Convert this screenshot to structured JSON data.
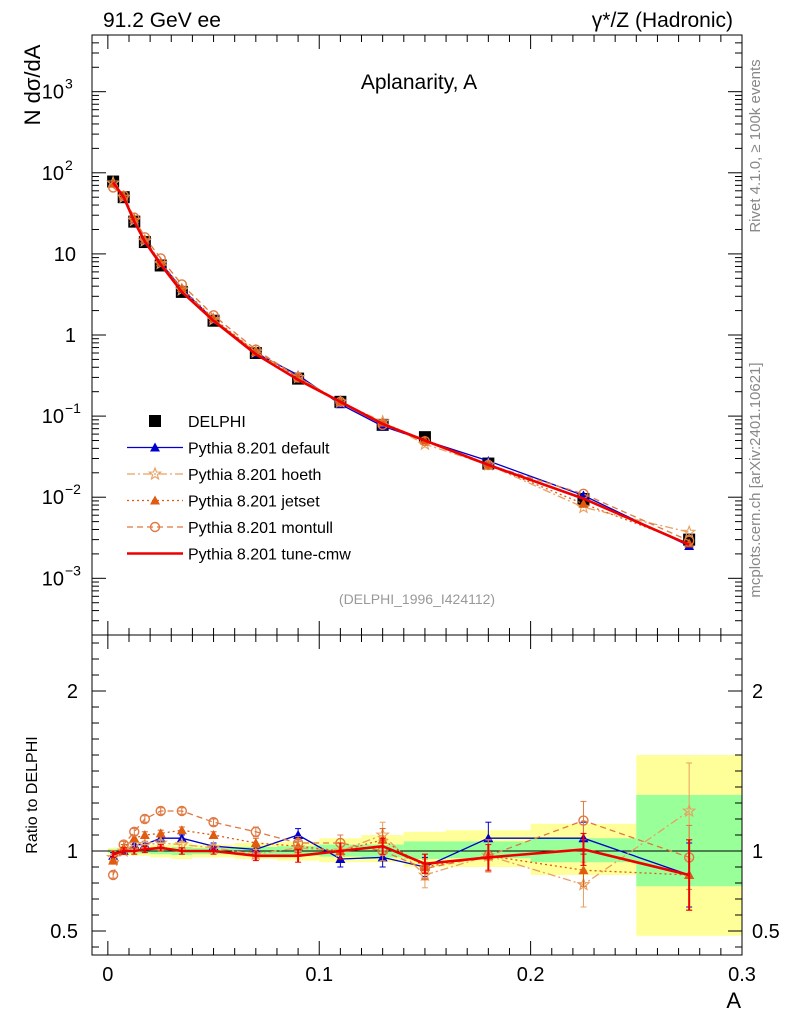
{
  "header": {
    "left": "91.2 GeV ee",
    "right": "γ*/Z (Hadronic)"
  },
  "side_labels": {
    "rivet": "Rivet 4.1.0, ≥ 100k events",
    "mcplots": "mcplots.cern.ch [arXiv:2401.10621]"
  },
  "chart_data": [
    {
      "type": "line",
      "panel": "main",
      "title": "Aplanarity, A",
      "watermark": "(DELPHI_1996_I424112)",
      "ylabel": "N  dσ/dA",
      "yscale": "log",
      "xlim": [
        -0.0075,
        0.3
      ],
      "ylim": [
        0.0002,
        5000
      ],
      "yticks": [
        {
          "v": 0.001,
          "base": "10",
          "exp": "−3"
        },
        {
          "v": 0.01,
          "base": "10",
          "exp": "−2"
        },
        {
          "v": 0.1,
          "base": "10",
          "exp": "−1"
        },
        {
          "v": 1,
          "base": "1",
          "exp": ""
        },
        {
          "v": 10,
          "base": "10",
          "exp": ""
        },
        {
          "v": 100,
          "base": "10",
          "exp": "2"
        },
        {
          "v": 1000,
          "base": "10",
          "exp": "3"
        }
      ],
      "x": [
        0.0025,
        0.0075,
        0.0125,
        0.0175,
        0.025,
        0.035,
        0.05,
        0.07,
        0.09,
        0.11,
        0.13,
        0.15,
        0.18,
        0.225,
        0.275
      ],
      "series": [
        {
          "name": "DELPHI",
          "color": "#000000",
          "style": "data",
          "values": [
            78,
            50,
            25,
            14,
            7.2,
            3.4,
            1.5,
            0.6,
            0.29,
            0.15,
            0.078,
            0.055,
            0.026,
            0.0095,
            0.003
          ]
        },
        {
          "name": "Pythia 8.201 default",
          "color": "#0000cc",
          "style": "solid",
          "marker": "triangle",
          "values": [
            76,
            50,
            26,
            14.5,
            7.8,
            3.7,
            1.55,
            0.6,
            0.32,
            0.14,
            0.075,
            0.05,
            0.028,
            0.0105,
            0.0025
          ]
        },
        {
          "name": "Pythia 8.201 hoeth",
          "color": "#e8a060",
          "style": "dashdot",
          "marker": "star",
          "values": [
            75,
            50,
            26,
            14.5,
            7.6,
            3.6,
            1.55,
            0.62,
            0.3,
            0.15,
            0.085,
            0.045,
            0.025,
            0.0075,
            0.0037
          ]
        },
        {
          "name": "Pythia 8.201 jetset",
          "color": "#e05a10",
          "style": "dotted",
          "marker": "triangle",
          "values": [
            74,
            51,
            27,
            15,
            7.9,
            3.8,
            1.6,
            0.62,
            0.3,
            0.15,
            0.083,
            0.05,
            0.025,
            0.0083,
            0.0027
          ]
        },
        {
          "name": "Pythia 8.201 montull",
          "color": "#e07840",
          "style": "dashed",
          "marker": "circle",
          "values": [
            66,
            52,
            28,
            16,
            8.8,
            4.2,
            1.75,
            0.66,
            0.3,
            0.15,
            0.078,
            0.049,
            0.025,
            0.011,
            0.0029
          ]
        },
        {
          "name": "Pythia 8.201 tune-cmw",
          "color": "#ee0000",
          "style": "thick",
          "marker": "none",
          "values": [
            76,
            50,
            25,
            14.2,
            7.4,
            3.4,
            1.5,
            0.58,
            0.28,
            0.15,
            0.08,
            0.05,
            0.025,
            0.0096,
            0.0026
          ]
        }
      ]
    },
    {
      "type": "line",
      "panel": "ratio",
      "ylabel": "Ratio to DELPHI",
      "xlabel": "A",
      "xlim": [
        -0.0075,
        0.3
      ],
      "ylim": [
        0.35,
        2.35
      ],
      "yticks": [
        0.5,
        1,
        2
      ],
      "xticks": [
        0,
        0.1,
        0.2,
        0.3
      ],
      "xticklabels": [
        "0",
        "0.1",
        "0.2",
        "0.3"
      ],
      "x_edges": [
        0,
        0.005,
        0.01,
        0.015,
        0.02,
        0.03,
        0.04,
        0.06,
        0.08,
        0.1,
        0.12,
        0.14,
        0.16,
        0.2,
        0.25,
        0.3
      ],
      "band_yellow": [
        [
          0.98,
          1.02
        ],
        [
          0.97,
          1.03
        ],
        [
          0.97,
          1.03
        ],
        [
          0.97,
          1.03
        ],
        [
          0.96,
          1.04
        ],
        [
          0.95,
          1.05
        ],
        [
          0.96,
          1.04
        ],
        [
          0.95,
          1.05
        ],
        [
          0.94,
          1.06
        ],
        [
          0.93,
          1.08
        ],
        [
          0.93,
          1.1
        ],
        [
          0.9,
          1.12
        ],
        [
          0.9,
          1.13
        ],
        [
          0.85,
          1.17
        ],
        [
          0.47,
          1.6
        ]
      ],
      "band_green": [
        [
          0.99,
          1.01
        ],
        [
          0.985,
          1.015
        ],
        [
          0.985,
          1.015
        ],
        [
          0.985,
          1.015
        ],
        [
          0.98,
          1.02
        ],
        [
          0.975,
          1.025
        ],
        [
          0.98,
          1.02
        ],
        [
          0.975,
          1.025
        ],
        [
          0.97,
          1.03
        ],
        [
          0.965,
          1.04
        ],
        [
          0.96,
          1.04
        ],
        [
          0.95,
          1.06
        ],
        [
          0.955,
          1.06
        ],
        [
          0.93,
          1.08
        ],
        [
          0.78,
          1.35
        ]
      ],
      "x": [
        0.0025,
        0.0075,
        0.0125,
        0.0175,
        0.025,
        0.035,
        0.05,
        0.07,
        0.09,
        0.11,
        0.13,
        0.15,
        0.18,
        0.225,
        0.275
      ],
      "series": [
        {
          "name": "Pythia 8.201 default",
          "color": "#0000cc",
          "style": "solid",
          "marker": "triangle",
          "values": [
            0.97,
            1.0,
            1.04,
            1.04,
            1.08,
            1.08,
            1.03,
            1.01,
            1.1,
            0.95,
            0.96,
            0.9,
            1.08,
            1.08,
            0.85
          ],
          "err": [
            0.02,
            0.02,
            0.02,
            0.02,
            0.02,
            0.02,
            0.02,
            0.03,
            0.04,
            0.05,
            0.06,
            0.06,
            0.1,
            0.1,
            0.2
          ]
        },
        {
          "name": "Pythia 8.201 hoeth",
          "color": "#e8a060",
          "style": "dashdot",
          "marker": "star",
          "values": [
            0.96,
            1.0,
            1.04,
            1.04,
            1.05,
            1.04,
            1.02,
            0.98,
            1.02,
            1.0,
            1.1,
            0.85,
            0.97,
            0.79,
            1.25
          ],
          "err": [
            0.02,
            0.02,
            0.02,
            0.02,
            0.02,
            0.02,
            0.02,
            0.03,
            0.04,
            0.05,
            0.08,
            0.08,
            0.1,
            0.14,
            0.3
          ]
        },
        {
          "name": "Pythia 8.201 jetset",
          "color": "#e05a10",
          "style": "dotted",
          "marker": "triangle",
          "values": [
            0.94,
            1.02,
            1.08,
            1.1,
            1.11,
            1.13,
            1.1,
            1.05,
            1.03,
            1.0,
            1.07,
            0.9,
            0.97,
            0.88,
            0.85
          ],
          "err": [
            0.02,
            0.02,
            0.02,
            0.02,
            0.02,
            0.02,
            0.02,
            0.03,
            0.04,
            0.05,
            0.07,
            0.08,
            0.1,
            0.1,
            0.22
          ]
        },
        {
          "name": "Pythia 8.201 montull",
          "color": "#e07840",
          "style": "dashed",
          "marker": "circle",
          "values": [
            0.85,
            1.04,
            1.12,
            1.2,
            1.25,
            1.25,
            1.18,
            1.12,
            1.05,
            1.05,
            1.0,
            0.89,
            0.97,
            1.19,
            0.96
          ],
          "err": [
            0.02,
            0.02,
            0.02,
            0.02,
            0.02,
            0.02,
            0.02,
            0.03,
            0.04,
            0.05,
            0.06,
            0.06,
            0.1,
            0.12,
            0.2
          ]
        },
        {
          "name": "Pythia 8.201 tune-cmw",
          "color": "#ee0000",
          "style": "thick",
          "marker": "none",
          "values": [
            0.98,
            1.0,
            1.0,
            1.01,
            1.02,
            1.0,
            1.0,
            0.97,
            0.97,
            1.0,
            1.03,
            0.92,
            0.96,
            1.01,
            0.85
          ],
          "err": [
            0.02,
            0.02,
            0.02,
            0.02,
            0.02,
            0.02,
            0.02,
            0.03,
            0.04,
            0.05,
            0.05,
            0.06,
            0.08,
            0.1,
            0.22
          ]
        }
      ]
    }
  ]
}
